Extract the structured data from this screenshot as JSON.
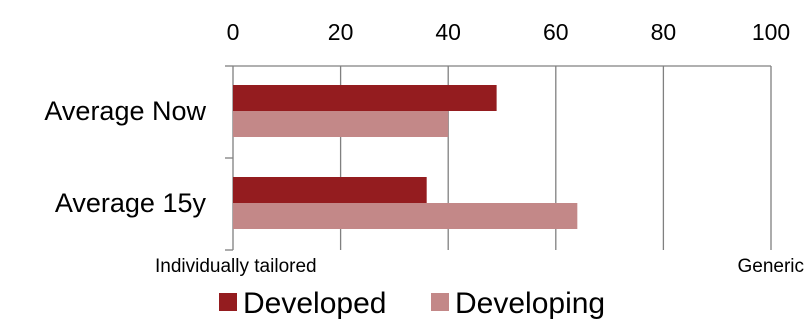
{
  "chart_data": {
    "type": "bar",
    "orientation": "horizontal",
    "categories": [
      "Average Now",
      "Average 15y"
    ],
    "series": [
      {
        "name": "Developed",
        "values": [
          49,
          36
        ],
        "color": "#941c1f"
      },
      {
        "name": "Developing",
        "values": [
          40,
          64
        ],
        "color": "#c38888"
      }
    ],
    "xlim": [
      0,
      100
    ],
    "xticks": [
      "0",
      "20",
      "40",
      "60",
      "80",
      "100"
    ],
    "x_axis_position": "top",
    "grid": true,
    "gridline_color": "#808080",
    "legend_position": "bottom",
    "annotations": {
      "left": "Individually tailored",
      "right": "Generic"
    }
  }
}
